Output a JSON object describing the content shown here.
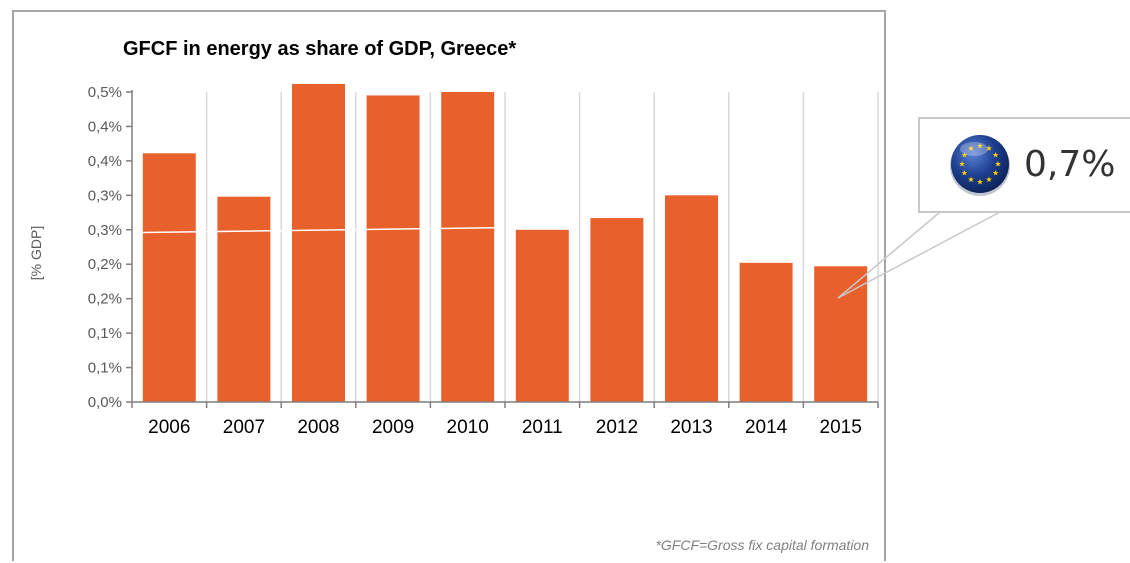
{
  "chart_data": {
    "type": "bar",
    "title": "GFCF in energy as share of GDP, Greece*",
    "xlabel": "",
    "ylabel": "[% GDP]",
    "categories": [
      "2006",
      "2007",
      "2008",
      "2009",
      "2010",
      "2011",
      "2012",
      "2013",
      "2014",
      "2015"
    ],
    "values": [
      0.361,
      0.298,
      0.475,
      0.445,
      0.45,
      0.25,
      0.267,
      0.3,
      0.202,
      0.197
    ],
    "ylim": [
      0,
      0.45
    ],
    "yticks": [
      0,
      0.05,
      0.1,
      0.15,
      0.2,
      0.25,
      0.3,
      0.35,
      0.4,
      0.45
    ],
    "ytick_labels": [
      "0,0%",
      "0,1%",
      "0,1%",
      "0,2%",
      "0,2%",
      "0,3%",
      "0,3%",
      "0,4%",
      "0,4%",
      "0,5%"
    ],
    "reference_line": {
      "from_year": "2006",
      "to_year": "2010",
      "from_value": 0.246,
      "to_value": 0.253,
      "color": "#ffffff"
    },
    "footnote": "*GFCF=Gross fix capital formation",
    "grid": "vertical",
    "colors": {
      "bar": "#e8602c",
      "grid": "#d9d9d9",
      "axis": "#7f7f7f",
      "text": "#000000",
      "axis_text": "#595959",
      "footnote": "#7f7f7f"
    }
  },
  "eu_callout": {
    "value": "0,7%",
    "icon": "eu-flag-icon",
    "colors": {
      "flag_blue": "#1d3f8f",
      "star": "#ffcc00",
      "border": "#c8c8c8"
    }
  }
}
